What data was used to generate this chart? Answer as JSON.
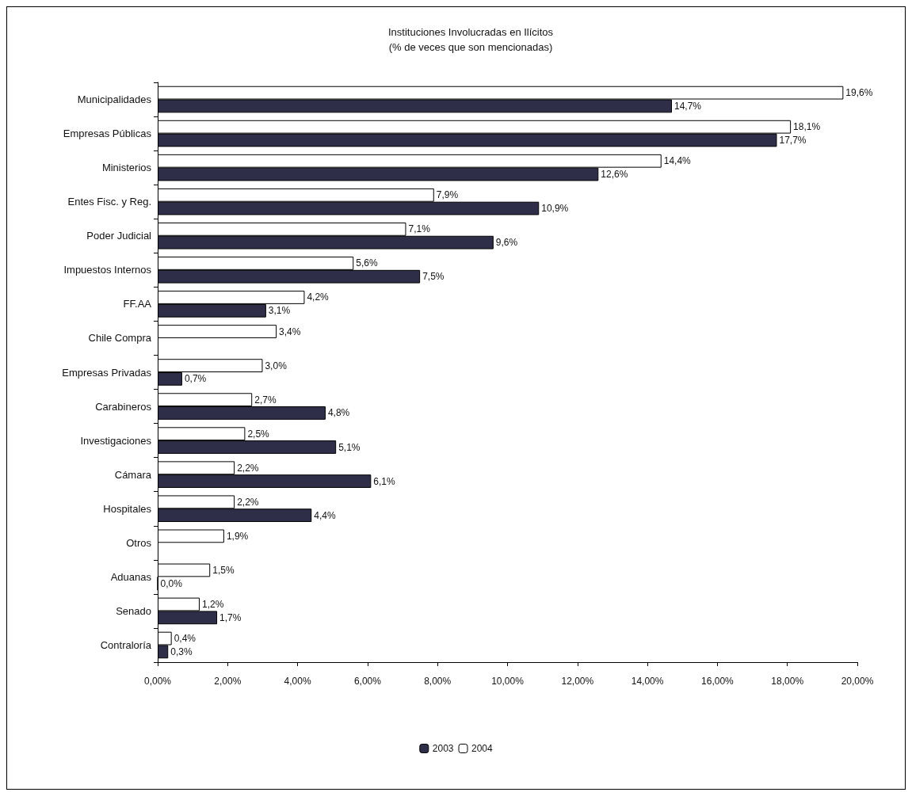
{
  "chart_data": {
    "type": "bar",
    "orientation": "horizontal",
    "title": "Instituciones Involucradas en Ilícitos",
    "subtitle": "(% de veces que son mencionadas)",
    "categories": [
      "Municipalidades",
      "Empresas Públicas",
      "Ministerios",
      "Entes Fisc. y Reg.",
      "Poder Judicial",
      "Impuestos Internos",
      "FF.AA",
      "Chile Compra",
      "Empresas Privadas",
      "Carabineros",
      "Investigaciones",
      "Cámara",
      "Hospitales",
      "Otros",
      "Aduanas",
      "Senado",
      "Contraloría"
    ],
    "series": [
      {
        "name": "2003",
        "color": "#2e2e48",
        "values": [
          14.7,
          17.7,
          12.6,
          10.9,
          9.6,
          7.5,
          3.1,
          null,
          0.7,
          4.8,
          5.1,
          6.1,
          4.4,
          null,
          0.0,
          1.7,
          0.3
        ],
        "value_labels": [
          "14,7%",
          "17,7%",
          "12,6%",
          "10,9%",
          "9,6%",
          "7,5%",
          "3,1%",
          null,
          "0,7%",
          "4,8%",
          "5,1%",
          "6,1%",
          "4,4%",
          null,
          "0,0%",
          "1,7%",
          "0,3%"
        ]
      },
      {
        "name": "2004",
        "color": "#ffffff",
        "values": [
          19.6,
          18.1,
          14.4,
          7.9,
          7.1,
          5.6,
          4.2,
          3.4,
          3.0,
          2.7,
          2.5,
          2.2,
          2.2,
          1.9,
          1.5,
          1.2,
          0.4
        ],
        "value_labels": [
          "19,6%",
          "18,1%",
          "14,4%",
          "7,9%",
          "7,1%",
          "5,6%",
          "4,2%",
          "3,4%",
          "3,0%",
          "2,7%",
          "2,5%",
          "2,2%",
          "2,2%",
          "1,9%",
          "1,5%",
          "1,2%",
          "0,4%"
        ]
      }
    ],
    "xlim": [
      0,
      20
    ],
    "xticks": [
      {
        "value": 0,
        "label": "0,00%"
      },
      {
        "value": 2,
        "label": "2,00%"
      },
      {
        "value": 4,
        "label": "4,00%"
      },
      {
        "value": 6,
        "label": "6,00%"
      },
      {
        "value": 8,
        "label": "8,00%"
      },
      {
        "value": 10,
        "label": "10,00%"
      },
      {
        "value": 12,
        "label": "12,00%"
      },
      {
        "value": 14,
        "label": "14,00%"
      },
      {
        "value": 16,
        "label": "16,00%"
      },
      {
        "value": 18,
        "label": "18,00%"
      },
      {
        "value": 20,
        "label": "20,00%"
      }
    ],
    "grid": false,
    "legend": "bottom"
  }
}
